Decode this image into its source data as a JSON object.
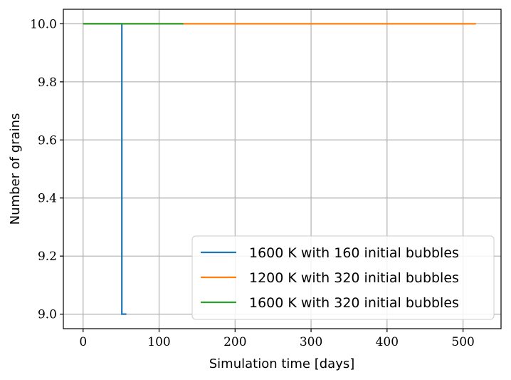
{
  "chart_data": {
    "type": "line",
    "title": "",
    "xlabel": "Simulation time [days]",
    "ylabel": "Number of grains",
    "xlim": [
      -26,
      550
    ],
    "ylim": [
      8.95,
      10.05
    ],
    "x_ticks": [
      0,
      100,
      200,
      300,
      400,
      500
    ],
    "x_tick_labels": [
      "0",
      "100",
      "200",
      "300",
      "400",
      "500"
    ],
    "y_ticks": [
      9.0,
      9.2,
      9.4,
      9.6,
      9.8,
      10.0
    ],
    "y_tick_labels": [
      "9.0",
      "9.2",
      "9.4",
      "9.6",
      "9.8",
      "10.0"
    ],
    "grid": true,
    "legend_position": "lower-right",
    "series": [
      {
        "name": "1600 K with 160 initial bubbles",
        "color": "#1f77b4",
        "step": true,
        "x": [
          0,
          51,
          51,
          57
        ],
        "y": [
          10.0,
          10.0,
          9.0,
          9.0
        ]
      },
      {
        "name": "1200 K with 320 initial bubbles",
        "color": "#ff7f0e",
        "step": true,
        "x": [
          0,
          517
        ],
        "y": [
          10.0,
          10.0
        ]
      },
      {
        "name": "1600 K with 320 initial bubbles",
        "color": "#2ca02c",
        "step": true,
        "x": [
          0,
          132
        ],
        "y": [
          10.0,
          10.0
        ]
      }
    ]
  }
}
